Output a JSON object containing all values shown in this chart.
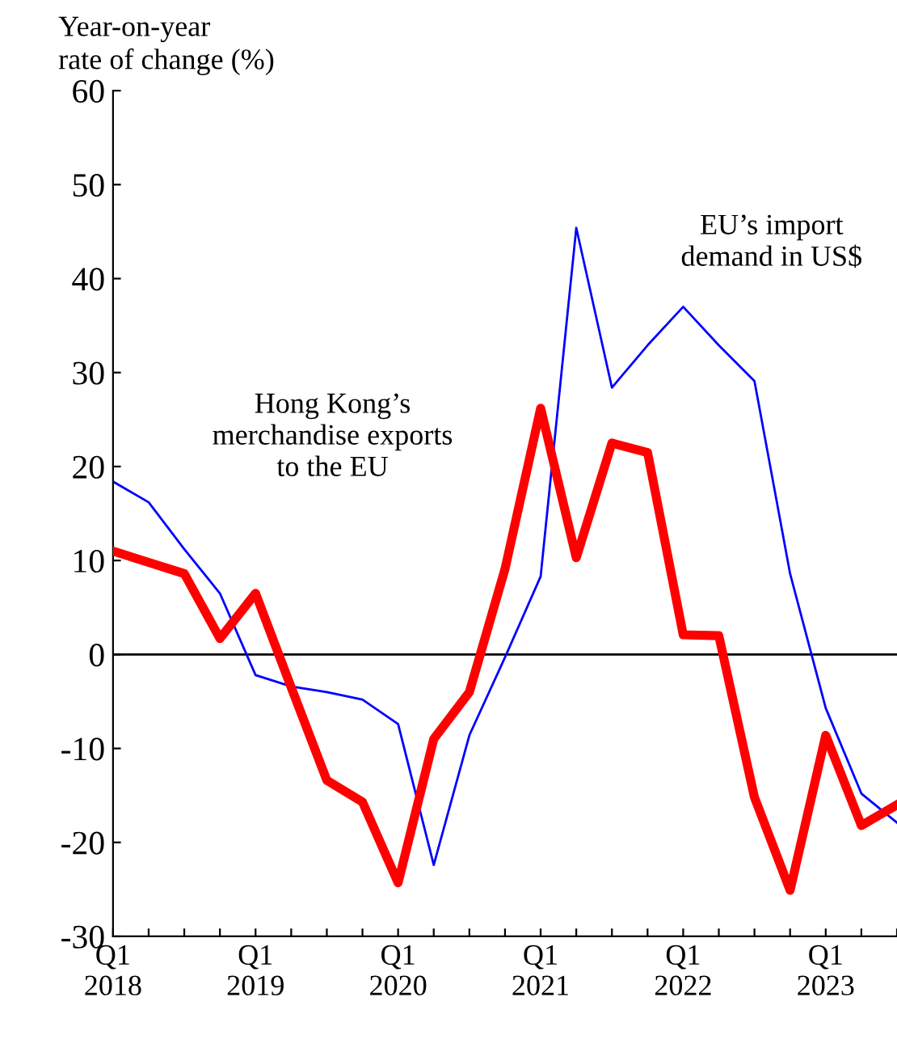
{
  "chart_data": {
    "type": "line",
    "ylabel": "Year-on-year\nrate of change (%)",
    "categories": [
      "Q1\n2018",
      null,
      null,
      null,
      "Q1\n2019",
      null,
      null,
      null,
      "Q1\n2020",
      null,
      null,
      null,
      "Q1\n2021",
      null,
      null,
      null,
      "Q1\n2022",
      null,
      null,
      null,
      "Q1\n2023",
      null,
      null
    ],
    "series": [
      {
        "name": "Hong Kong’s\nmerchandise exports\nto the EU",
        "color": "#ff0000",
        "values": [
          11.0,
          9.8,
          8.6,
          1.7,
          6.5,
          -3.5,
          -13.4,
          -15.7,
          -24.3,
          -9.0,
          -4.0,
          9.1,
          26.2,
          10.3,
          22.5,
          21.5,
          2.1,
          2.0,
          -15.2,
          -25.1,
          -8.6,
          -18.2,
          -16.0
        ]
      },
      {
        "name": "EU’s import\ndemand in US$",
        "color": "#0000ff",
        "values": [
          18.4,
          16.2,
          11.2,
          6.5,
          -2.2,
          -3.4,
          -4.0,
          -4.8,
          -7.4,
          -22.4,
          -8.6,
          -0.3,
          8.3,
          45.4,
          28.4,
          32.9,
          37.0,
          32.9,
          29.1,
          8.6,
          -5.7,
          -14.8,
          -17.9
        ]
      }
    ],
    "ylim": [
      -30,
      60
    ],
    "yticks": [
      -30,
      -20,
      -10,
      0,
      10,
      20,
      30,
      40,
      50,
      60
    ],
    "ref_lines": [
      {
        "axis": "y",
        "value": 0,
        "color": "#000000"
      }
    ],
    "grid": false,
    "legend": false,
    "marker": "none",
    "line_style": "solid"
  }
}
